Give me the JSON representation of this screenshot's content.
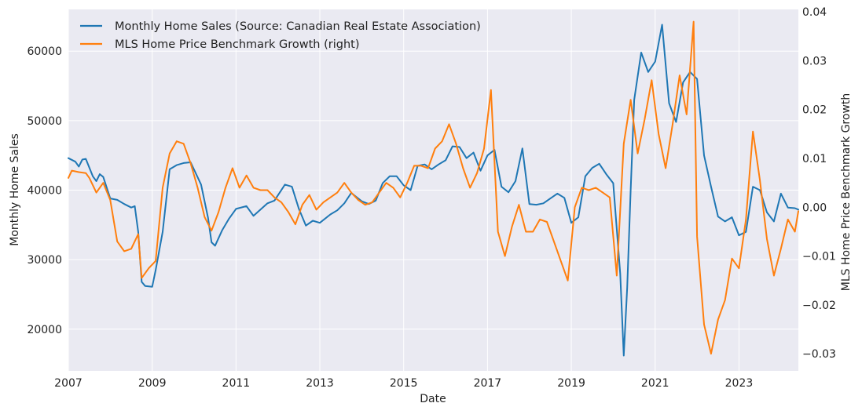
{
  "chart_data": {
    "type": "line",
    "xlabel": "Date",
    "ylabel": "Monthly Home Sales",
    "y2label": "MLS Home Price Benchmark Growth",
    "x_ticks": [
      "2007",
      "2009",
      "2011",
      "2013",
      "2015",
      "2017",
      "2019",
      "2021",
      "2023"
    ],
    "y_ticks": [
      "20000",
      "30000",
      "40000",
      "50000",
      "60000"
    ],
    "y2_ticks": [
      "−0.03",
      "−0.02",
      "−0.01",
      "0.00",
      "0.01",
      "0.02",
      "0.03",
      "0.04"
    ],
    "xlim": [
      "2007-01",
      "2024-06"
    ],
    "ylim": [
      14000,
      66000
    ],
    "y2lim": [
      -0.0335,
      0.0405
    ],
    "grid": true,
    "legend_position": "top-left",
    "series": [
      {
        "name": "Monthly Home Sales (Source: Canadian Real Estate Association)",
        "axis": "left",
        "color": "#1f77b4",
        "x": [
          "2007-01",
          "2007-03",
          "2007-04",
          "2007-05",
          "2007-06",
          "2007-08",
          "2007-09",
          "2007-10",
          "2007-11",
          "2008-01",
          "2008-03",
          "2008-05",
          "2008-07",
          "2008-08",
          "2008-09",
          "2008-10",
          "2008-11",
          "2009-01",
          "2009-02",
          "2009-04",
          "2009-06",
          "2009-08",
          "2009-10",
          "2009-12",
          "2010-03",
          "2010-05",
          "2010-06",
          "2010-07",
          "2010-09",
          "2010-11",
          "2011-01",
          "2011-04",
          "2011-06",
          "2011-08",
          "2011-10",
          "2011-12",
          "2012-03",
          "2012-05",
          "2012-07",
          "2012-09",
          "2012-11",
          "2013-01",
          "2013-04",
          "2013-06",
          "2013-08",
          "2013-10",
          "2014-01",
          "2014-03",
          "2014-05",
          "2014-07",
          "2014-09",
          "2014-11",
          "2015-01",
          "2015-03",
          "2015-05",
          "2015-07",
          "2015-09",
          "2015-11",
          "2016-01",
          "2016-03",
          "2016-05",
          "2016-07",
          "2016-09",
          "2016-11",
          "2017-01",
          "2017-03",
          "2017-05",
          "2017-07",
          "2017-09",
          "2017-11",
          "2018-01",
          "2018-03",
          "2018-05",
          "2018-07",
          "2018-09",
          "2018-11",
          "2019-01",
          "2019-03",
          "2019-05",
          "2019-07",
          "2019-09",
          "2019-11",
          "2020-01",
          "2020-03",
          "2020-04",
          "2020-05",
          "2020-06",
          "2020-07",
          "2020-09",
          "2020-11",
          "2021-01",
          "2021-03",
          "2021-05",
          "2021-07",
          "2021-09",
          "2021-11",
          "2022-01",
          "2022-03",
          "2022-05",
          "2022-07",
          "2022-09",
          "2022-11",
          "2023-01",
          "2023-03",
          "2023-05",
          "2023-07",
          "2023-09",
          "2023-11",
          "2024-01",
          "2024-03",
          "2024-05",
          "2024-06"
        ],
        "values": [
          44600,
          44100,
          43400,
          44400,
          44500,
          42000,
          41300,
          42300,
          41900,
          38800,
          38600,
          38000,
          37500,
          37700,
          34000,
          26800,
          26200,
          26100,
          28500,
          34000,
          43000,
          43600,
          43900,
          44000,
          40800,
          36000,
          32500,
          32000,
          34200,
          35900,
          37300,
          37700,
          36300,
          37200,
          38100,
          38500,
          40800,
          40500,
          37300,
          34900,
          35600,
          35300,
          36500,
          37100,
          38100,
          39600,
          38400,
          38000,
          38500,
          41000,
          42000,
          42000,
          40700,
          40000,
          43500,
          43700,
          43000,
          43700,
          44300,
          46300,
          46200,
          44600,
          45400,
          42800,
          45000,
          45800,
          40500,
          39700,
          41300,
          46000,
          38000,
          37900,
          38100,
          38800,
          39500,
          38900,
          35300,
          36100,
          42000,
          43200,
          43800,
          42300,
          41000,
          28000,
          16200,
          26000,
          40000,
          53000,
          59800,
          57000,
          58500,
          63800,
          52500,
          49800,
          55500,
          57000,
          56000,
          45000,
          40500,
          36200,
          35500,
          36100,
          33500,
          34000,
          40500,
          40000,
          36800,
          35500,
          39500,
          37500,
          37400,
          37200
        ]
      },
      {
        "name": "MLS Home Price Benchmark Growth (right)",
        "axis": "right",
        "color": "#ff7f0e",
        "x": [
          "2007-01",
          "2007-02",
          "2007-04",
          "2007-06",
          "2007-07",
          "2007-09",
          "2007-11",
          "2008-01",
          "2008-03",
          "2008-05",
          "2008-07",
          "2008-09",
          "2008-10",
          "2008-12",
          "2009-02",
          "2009-04",
          "2009-06",
          "2009-08",
          "2009-10",
          "2009-12",
          "2010-02",
          "2010-04",
          "2010-06",
          "2010-08",
          "2010-10",
          "2010-12",
          "2011-02",
          "2011-04",
          "2011-06",
          "2011-08",
          "2011-10",
          "2011-12",
          "2012-02",
          "2012-04",
          "2012-06",
          "2012-08",
          "2012-10",
          "2012-12",
          "2013-02",
          "2013-04",
          "2013-06",
          "2013-08",
          "2013-10",
          "2013-12",
          "2014-02",
          "2014-04",
          "2014-06",
          "2014-08",
          "2014-10",
          "2014-12",
          "2015-02",
          "2015-04",
          "2015-06",
          "2015-08",
          "2015-10",
          "2015-12",
          "2016-02",
          "2016-04",
          "2016-06",
          "2016-08",
          "2016-10",
          "2016-12",
          "2017-02",
          "2017-04",
          "2017-06",
          "2017-08",
          "2017-10",
          "2017-12",
          "2018-02",
          "2018-04",
          "2018-06",
          "2018-08",
          "2018-10",
          "2018-12",
          "2019-02",
          "2019-04",
          "2019-06",
          "2019-08",
          "2019-10",
          "2019-12",
          "2020-02",
          "2020-04",
          "2020-06",
          "2020-08",
          "2020-10",
          "2020-12",
          "2021-02",
          "2021-04",
          "2021-06",
          "2021-08",
          "2021-10",
          "2021-12",
          "2022-01",
          "2022-03",
          "2022-05",
          "2022-07",
          "2022-09",
          "2022-11",
          "2023-01",
          "2023-03",
          "2023-05",
          "2023-07",
          "2023-09",
          "2023-11",
          "2024-01",
          "2024-03",
          "2024-05",
          "2024-06"
        ],
        "values": [
          0.006,
          0.0075,
          0.0072,
          0.007,
          0.006,
          0.003,
          0.005,
          0.0015,
          -0.007,
          -0.009,
          -0.0085,
          -0.0055,
          -0.0145,
          -0.0125,
          -0.011,
          0.004,
          0.011,
          0.0135,
          0.013,
          0.009,
          0.004,
          -0.002,
          -0.0048,
          -0.001,
          0.004,
          0.008,
          0.004,
          0.0065,
          0.004,
          0.0035,
          0.0035,
          0.002,
          0.001,
          -0.001,
          -0.0035,
          0.0005,
          0.0025,
          -0.0005,
          0.001,
          0.002,
          0.003,
          0.005,
          0.003,
          0.0015,
          0.0005,
          0.001,
          0.003,
          0.005,
          0.004,
          0.002,
          0.005,
          0.0085,
          0.0085,
          0.008,
          0.012,
          0.0135,
          0.017,
          0.013,
          0.008,
          0.004,
          0.007,
          0.012,
          0.024,
          -0.005,
          -0.01,
          -0.004,
          0.0005,
          -0.005,
          -0.005,
          -0.0025,
          -0.003,
          -0.007,
          -0.011,
          -0.015,
          0.0,
          0.004,
          0.0035,
          0.004,
          0.003,
          0.002,
          -0.014,
          0.013,
          0.022,
          0.011,
          0.018,
          0.026,
          0.015,
          0.008,
          0.017,
          0.027,
          0.019,
          0.038,
          -0.006,
          -0.024,
          -0.03,
          -0.023,
          -0.019,
          -0.0105,
          -0.0125,
          -0.0025,
          0.0155,
          0.0055,
          -0.0065,
          -0.014,
          -0.0085,
          -0.0025,
          -0.005,
          -0.0008
        ]
      }
    ]
  }
}
